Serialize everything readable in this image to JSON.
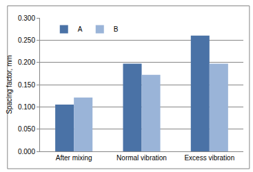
{
  "chart_data": {
    "type": "bar",
    "y_label": "Spacing factor, mm",
    "categories": [
      "After mixing",
      "Normal vibration",
      "Excess vibration"
    ],
    "series": [
      {
        "name": "A",
        "color": "#4a72a6",
        "values": [
          0.105,
          0.197,
          0.26
        ]
      },
      {
        "name": "B",
        "color": "#9ab4d8",
        "values": [
          0.121,
          0.172,
          0.197
        ]
      }
    ],
    "ylim": [
      0,
      0.3
    ],
    "yticks": [
      {
        "value": 0,
        "label": "0.000"
      },
      {
        "value": 0.05,
        "label": "0.050"
      },
      {
        "value": 0.1,
        "label": "0.100"
      },
      {
        "value": 0.15,
        "label": "0.150"
      },
      {
        "value": 0.2,
        "label": "0.200"
      },
      {
        "value": 0.25,
        "label": "0.250"
      },
      {
        "value": 0.3,
        "label": "0.300"
      }
    ],
    "grid": true,
    "legend": "top-left"
  }
}
